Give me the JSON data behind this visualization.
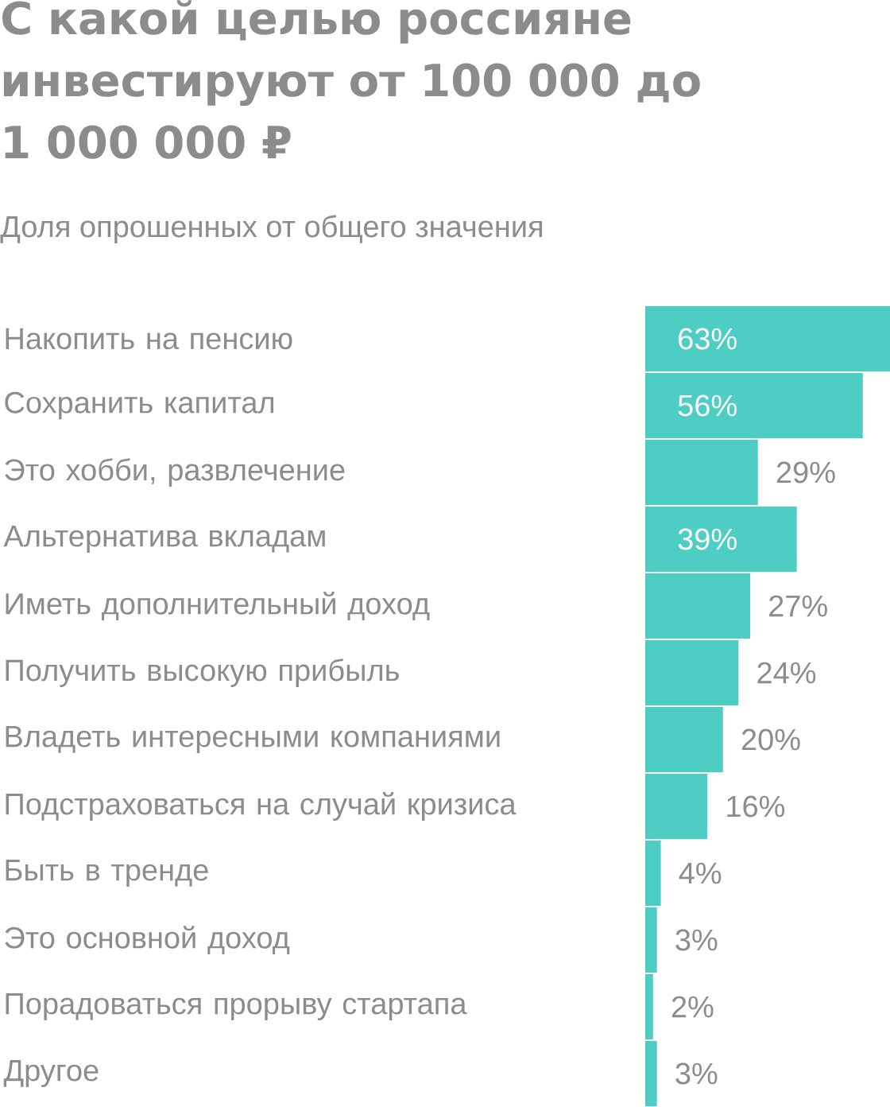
{
  "chart_data": {
    "type": "bar",
    "orientation": "horizontal",
    "title": "С какой целью россияне инвестируют от 100 000 до 1 000 000 ₽",
    "subtitle": "Доля опрошенных от общего значения",
    "categories": [
      "Накопить на пенсию",
      "Сохранить капитал",
      "Это хобби, развлечение",
      "Альтернатива вкладам",
      "Иметь дополнительный доход",
      "Получить высокую прибыль",
      "Владеть интересными компаниями",
      "Подстраховаться на случай кризиса",
      "Быть в тренде",
      "Это основной доход",
      "Порадоваться прорыву стартапа",
      "Другое"
    ],
    "values": [
      63,
      56,
      29,
      39,
      27,
      24,
      20,
      16,
      4,
      3,
      2,
      3
    ],
    "value_labels": [
      "63%",
      "56%",
      "29%",
      "39%",
      "27%",
      "24%",
      "20%",
      "16%",
      "4%",
      "3%",
      "2%",
      "3%"
    ],
    "color": "#4ecdc4"
  }
}
